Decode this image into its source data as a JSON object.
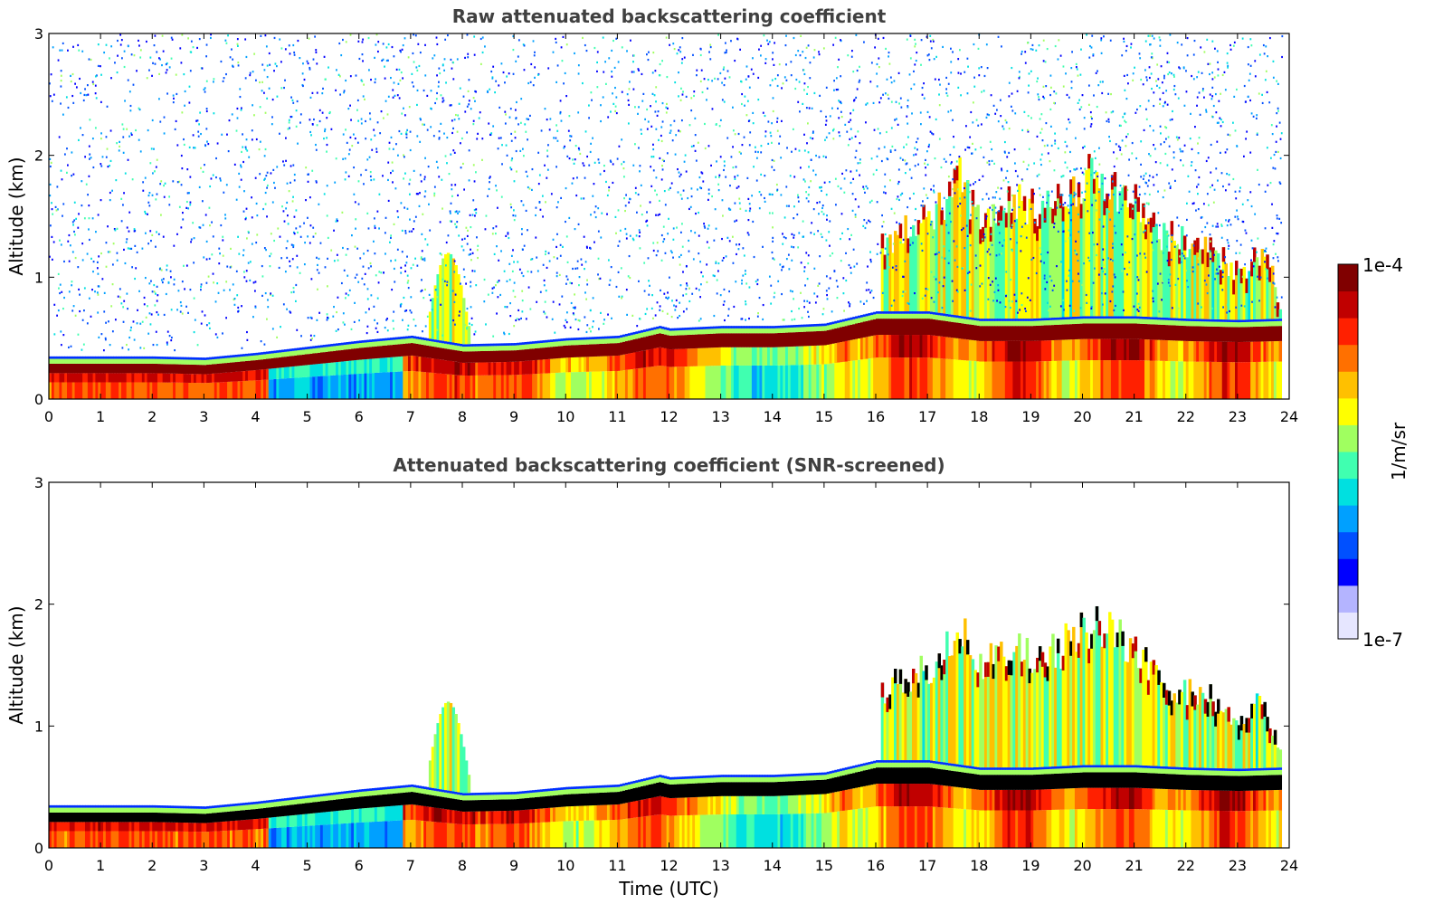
{
  "chart_data": [
    {
      "type": "heatmap",
      "title": "Raw attenuated backscattering coefficient",
      "xlabel": "",
      "ylabel": "Altitude (km)",
      "xlim": [
        0,
        24
      ],
      "ylim": [
        0,
        3
      ],
      "xticks": [
        "0",
        "1",
        "2",
        "3",
        "4",
        "5",
        "6",
        "7",
        "8",
        "9",
        "10",
        "11",
        "12",
        "13",
        "14",
        "15",
        "16",
        "17",
        "18",
        "19",
        "20",
        "21",
        "22",
        "23",
        "24"
      ],
      "yticks": [
        "0",
        "1",
        "2",
        "3"
      ],
      "screened": false,
      "boundary_layer_top_km": [
        [
          0,
          0.25
        ],
        [
          2,
          0.25
        ],
        [
          3,
          0.24
        ],
        [
          4,
          0.28
        ],
        [
          5,
          0.33
        ],
        [
          6,
          0.38
        ],
        [
          7,
          0.42
        ],
        [
          8,
          0.35
        ],
        [
          9,
          0.36
        ],
        [
          10,
          0.4
        ],
        [
          11,
          0.42
        ],
        [
          11.8,
          0.5
        ],
        [
          12,
          0.48
        ],
        [
          13,
          0.5
        ],
        [
          14,
          0.5
        ],
        [
          15,
          0.52
        ],
        [
          16,
          0.62
        ],
        [
          17,
          0.62
        ],
        [
          18,
          0.56
        ],
        [
          19,
          0.56
        ],
        [
          20,
          0.58
        ],
        [
          21,
          0.58
        ],
        [
          22,
          0.56
        ],
        [
          23,
          0.55
        ],
        [
          23.8,
          0.56
        ]
      ],
      "cloud_top_km": [
        [
          16.1,
          1.35
        ],
        [
          17,
          1.55
        ],
        [
          17.6,
          1.9
        ],
        [
          18,
          1.55
        ],
        [
          18.6,
          1.75
        ],
        [
          19,
          1.65
        ],
        [
          19.5,
          1.7
        ],
        [
          20,
          1.9
        ],
        [
          20.3,
          1.95
        ],
        [
          20.8,
          1.75
        ],
        [
          21,
          1.7
        ],
        [
          21.4,
          1.45
        ],
        [
          22,
          1.35
        ],
        [
          22.5,
          1.3
        ],
        [
          23,
          1.1
        ],
        [
          23.5,
          1.3
        ],
        [
          23.8,
          0.8
        ]
      ]
    },
    {
      "type": "heatmap",
      "title": "Attenuated backscattering coefficient (SNR-screened)",
      "xlabel": "Time (UTC)",
      "ylabel": "Altitude (km)",
      "xlim": [
        0,
        24
      ],
      "ylim": [
        0,
        3
      ],
      "xticks": [
        "0",
        "1",
        "2",
        "3",
        "4",
        "5",
        "6",
        "7",
        "8",
        "9",
        "10",
        "11",
        "12",
        "13",
        "14",
        "15",
        "16",
        "17",
        "18",
        "19",
        "20",
        "21",
        "22",
        "23",
        "24"
      ],
      "yticks": [
        "0",
        "1",
        "2",
        "3"
      ],
      "screened": true,
      "boundary_layer_top_km": [
        [
          0,
          0.25
        ],
        [
          2,
          0.25
        ],
        [
          3,
          0.24
        ],
        [
          4,
          0.28
        ],
        [
          5,
          0.33
        ],
        [
          6,
          0.38
        ],
        [
          7,
          0.42
        ],
        [
          8,
          0.35
        ],
        [
          9,
          0.36
        ],
        [
          10,
          0.4
        ],
        [
          11,
          0.42
        ],
        [
          11.8,
          0.5
        ],
        [
          12,
          0.48
        ],
        [
          13,
          0.5
        ],
        [
          14,
          0.5
        ],
        [
          15,
          0.52
        ],
        [
          16,
          0.62
        ],
        [
          17,
          0.62
        ],
        [
          18,
          0.56
        ],
        [
          19,
          0.56
        ],
        [
          20,
          0.58
        ],
        [
          21,
          0.58
        ],
        [
          22,
          0.56
        ],
        [
          23,
          0.55
        ],
        [
          23.8,
          0.56
        ]
      ],
      "cloud_top_km": [
        [
          16.1,
          1.35
        ],
        [
          17,
          1.55
        ],
        [
          17.6,
          1.9
        ],
        [
          18,
          1.55
        ],
        [
          18.6,
          1.75
        ],
        [
          19,
          1.65
        ],
        [
          19.5,
          1.7
        ],
        [
          20,
          1.9
        ],
        [
          20.3,
          1.95
        ],
        [
          20.8,
          1.75
        ],
        [
          21,
          1.7
        ],
        [
          21.4,
          1.45
        ],
        [
          22,
          1.35
        ],
        [
          22.5,
          1.3
        ],
        [
          23,
          1.1
        ],
        [
          23.5,
          1.3
        ],
        [
          23.8,
          0.8
        ]
      ]
    }
  ],
  "colorbar": {
    "label": "1/m/sr",
    "max_label": "1e-4",
    "min_label": "1e-7",
    "colors": [
      "#e6e6ff",
      "#b4b4ff",
      "#0000ff",
      "#0050ff",
      "#00a0ff",
      "#00e0e0",
      "#40ffb0",
      "#a0ff60",
      "#ffff00",
      "#ffc000",
      "#ff7000",
      "#ff2000",
      "#c00000",
      "#800000"
    ]
  }
}
